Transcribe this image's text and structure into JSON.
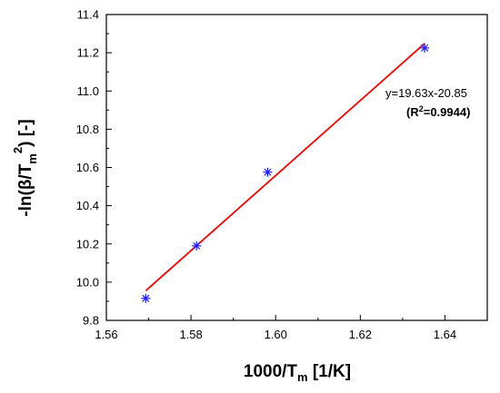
{
  "chart_data": {
    "type": "scatter",
    "title": "",
    "xlabel": {
      "main": "1000/T",
      "sub": "m",
      "unit": " [1/K]"
    },
    "ylabel": {
      "prefix": "-ln(β/T",
      "sub": "m",
      "sup": "2",
      "suffix": ") [-]"
    },
    "xlim": [
      1.56,
      1.65
    ],
    "ylim": [
      9.8,
      11.4
    ],
    "xticks": [
      1.56,
      1.58,
      1.6,
      1.62,
      1.64
    ],
    "yticks": [
      9.8,
      10.0,
      10.2,
      10.4,
      10.6,
      10.8,
      11.0,
      11.2,
      11.4
    ],
    "xtick_labels": [
      "1.56",
      "1.58",
      "1.60",
      "1.62",
      "1.64"
    ],
    "ytick_labels": [
      "9.8",
      "10.0",
      "10.2",
      "10.4",
      "10.6",
      "10.8",
      "11.0",
      "11.2",
      "11.4"
    ],
    "grid": false,
    "points": [
      {
        "x": 1.5693,
        "y": 9.915
      },
      {
        "x": 1.5813,
        "y": 10.19
      },
      {
        "x": 1.5981,
        "y": 10.575
      },
      {
        "x": 1.6352,
        "y": 11.225
      }
    ],
    "fit_line": {
      "slope": 19.63,
      "intercept": -20.85,
      "x_range": [
        1.5693,
        1.6352
      ]
    },
    "annotation": {
      "equation": "y=19.63x-20.85",
      "r2_prefix": "(R",
      "r2_sup": "2",
      "r2_value": "=0.9944)"
    },
    "colors": {
      "points": "#1a1aff",
      "fit_line": "#ff0000",
      "axes": "#000000"
    }
  }
}
